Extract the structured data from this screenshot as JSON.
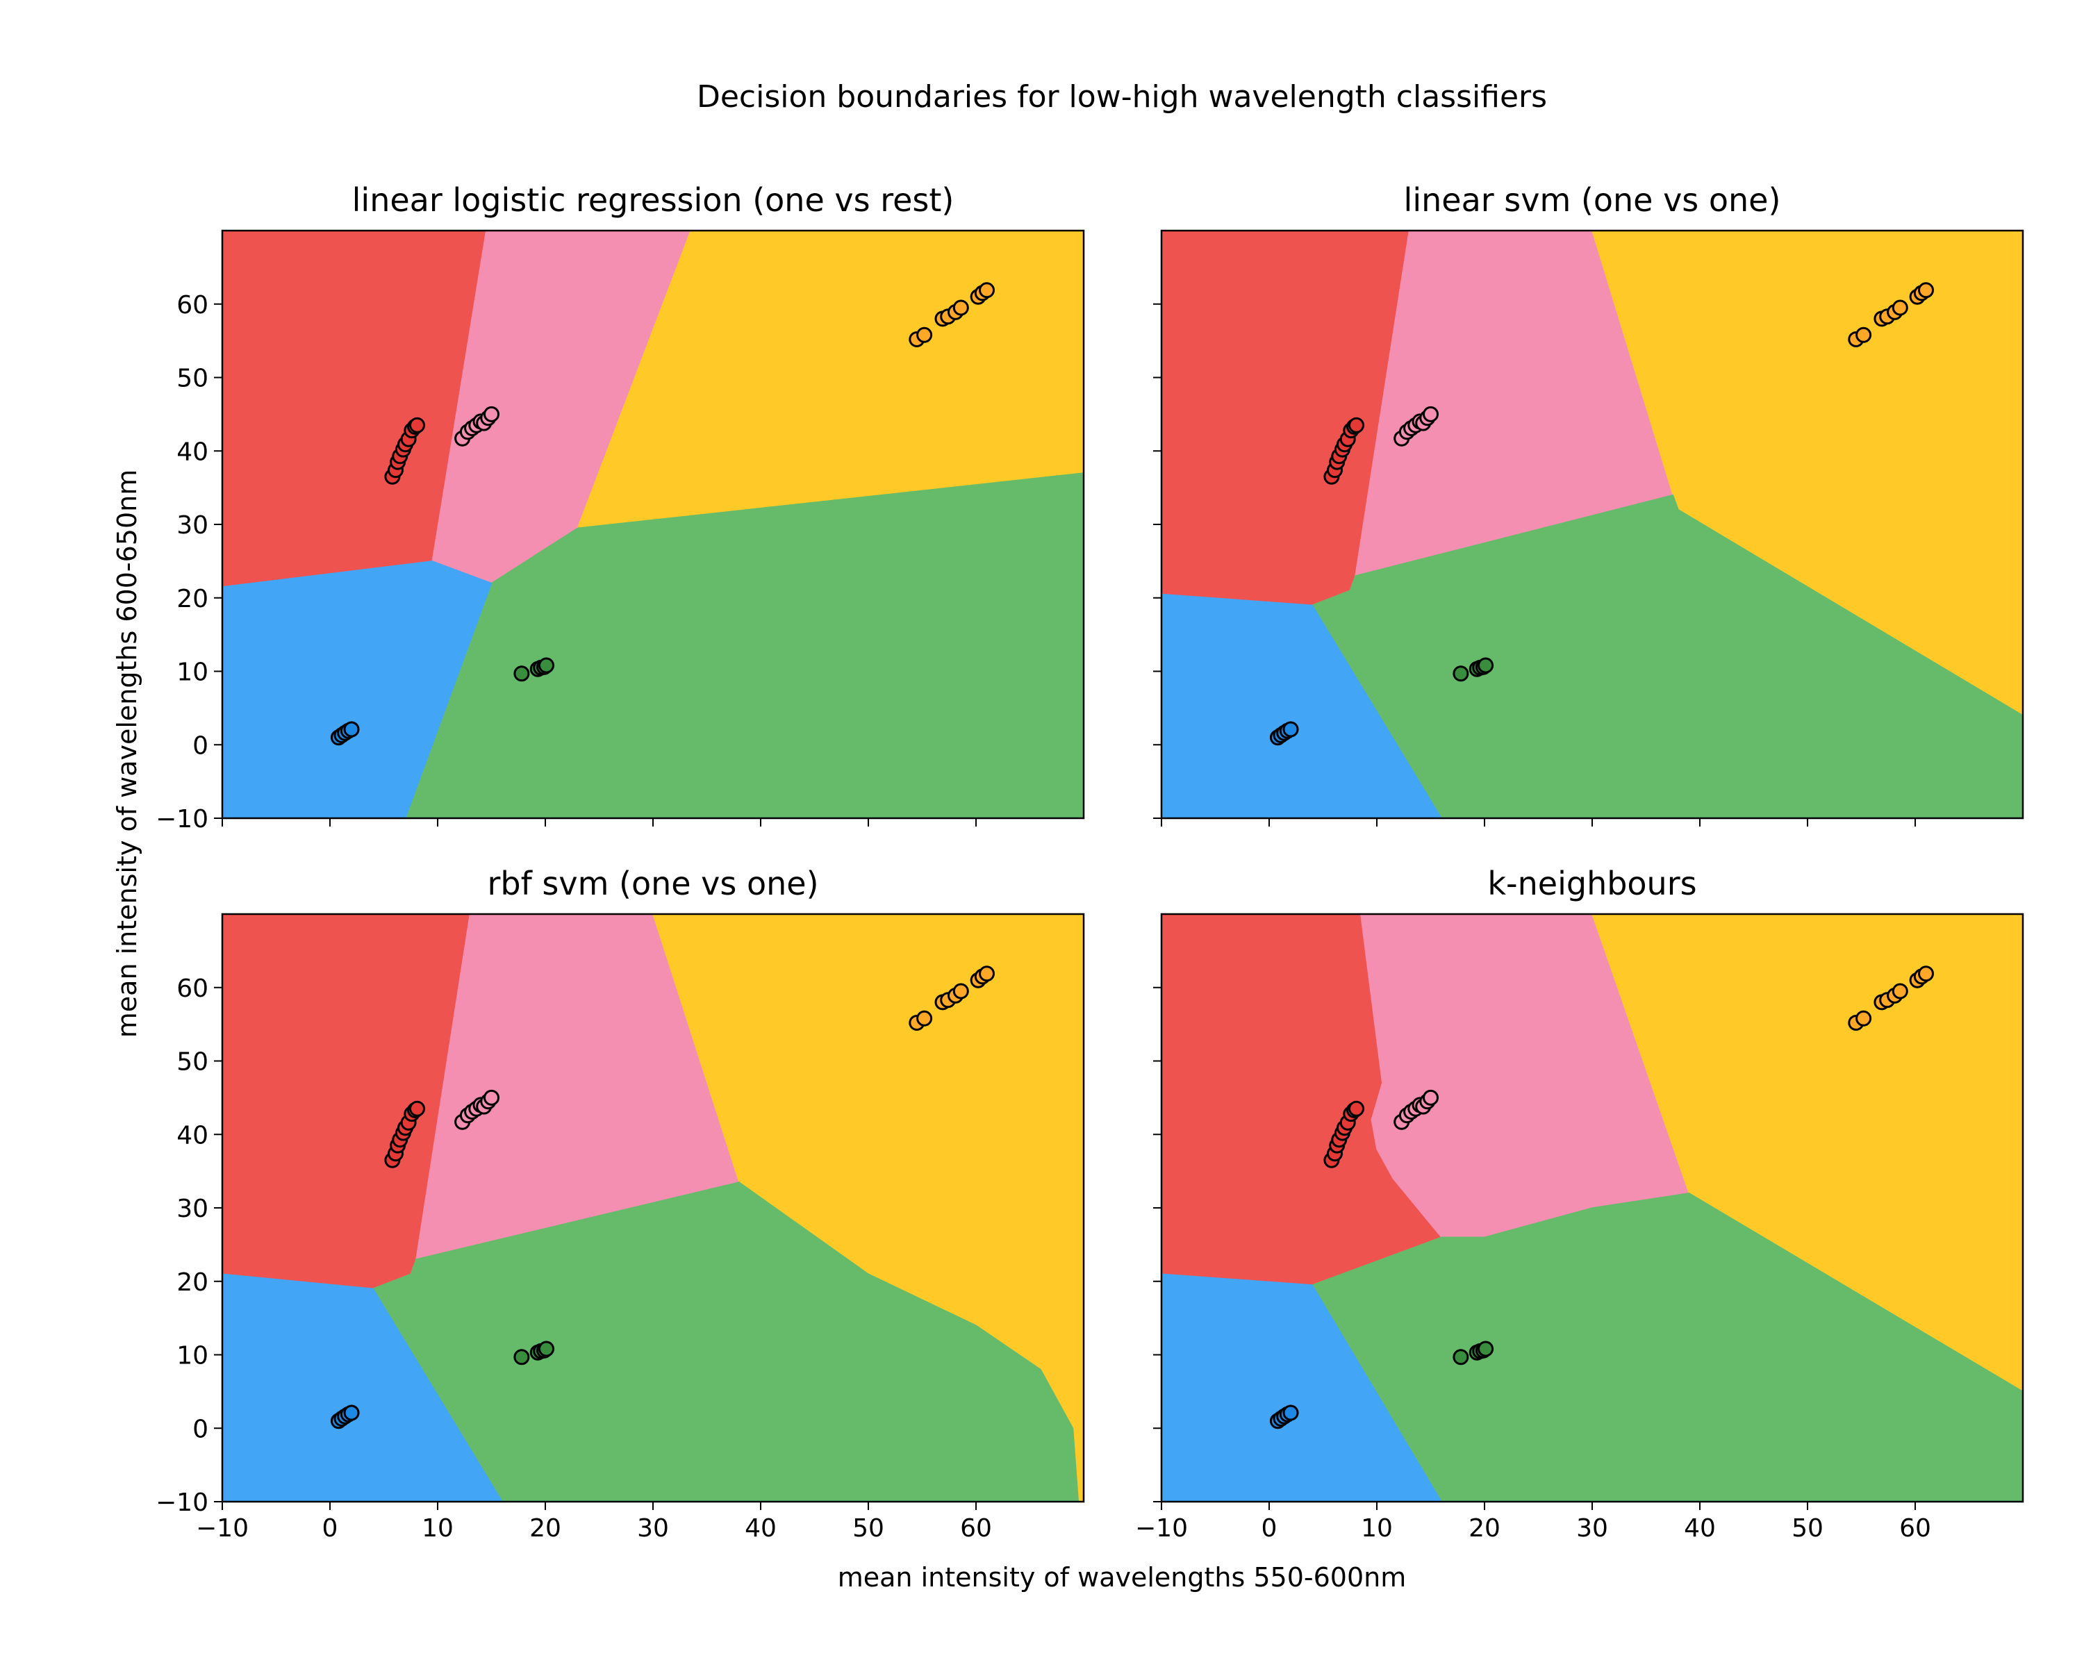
{
  "figure": {
    "suptitle": "Decision boundaries for low-high wavelength classifiers",
    "xlabel": "mean intensity of wavelengths 550-600nm",
    "ylabel": "mean intensity of wavelengths 600-650nm"
  },
  "colors": {
    "red": "#ef5350",
    "pink": "#f48fb1",
    "yellow": "#ffca28",
    "green": "#66bb6a",
    "blue": "#42a5f5",
    "pt_red": "#e53935",
    "pt_pink": "#f48fb1",
    "pt_yellow": "#ffa726",
    "pt_green": "#388e3c",
    "pt_blue": "#1e88e5"
  },
  "chart_data": [
    {
      "type": "scatter",
      "title": "linear logistic regression (one vs rest)",
      "xlim": [
        -10,
        70
      ],
      "ylim": [
        -10,
        70
      ],
      "xticks": [
        -10,
        0,
        10,
        20,
        30,
        40,
        50,
        60
      ],
      "yticks": [
        -10,
        0,
        10,
        20,
        30,
        40,
        50,
        60
      ],
      "show_xticklabels": false,
      "show_yticklabels": true,
      "regions": [
        {
          "class": "red",
          "polygon": [
            [
              -10,
              70
            ],
            [
              14.5,
              70
            ],
            [
              9.5,
              25
            ],
            [
              -10,
              21.5
            ]
          ]
        },
        {
          "class": "pink",
          "polygon": [
            [
              14.5,
              70
            ],
            [
              33.5,
              70
            ],
            [
              23,
              29.5
            ],
            [
              15,
              22
            ],
            [
              9.5,
              25
            ]
          ]
        },
        {
          "class": "yellow",
          "polygon": [
            [
              33.5,
              70
            ],
            [
              70,
              70
            ],
            [
              70,
              37
            ],
            [
              23,
              29.5
            ]
          ]
        },
        {
          "class": "green",
          "polygon": [
            [
              23,
              29.5
            ],
            [
              70,
              37
            ],
            [
              70,
              -10
            ],
            [
              7,
              -10
            ],
            [
              15,
              22
            ]
          ]
        },
        {
          "class": "blue",
          "polygon": [
            [
              -10,
              21.5
            ],
            [
              9.5,
              25
            ],
            [
              15,
              22
            ],
            [
              7,
              -10
            ],
            [
              -10,
              -10
            ]
          ]
        }
      ]
    },
    {
      "type": "scatter",
      "title": "linear svm (one vs one)",
      "xlim": [
        -10,
        70
      ],
      "ylim": [
        -10,
        70
      ],
      "xticks": [
        -10,
        0,
        10,
        20,
        30,
        40,
        50,
        60
      ],
      "yticks": [
        -10,
        0,
        10,
        20,
        30,
        40,
        50,
        60
      ],
      "show_xticklabels": false,
      "show_yticklabels": false,
      "regions": [
        {
          "class": "red",
          "polygon": [
            [
              -10,
              70
            ],
            [
              13,
              70
            ],
            [
              8,
              23
            ],
            [
              7.5,
              21
            ],
            [
              4,
              19
            ],
            [
              -10,
              20.5
            ]
          ]
        },
        {
          "class": "pink",
          "polygon": [
            [
              13,
              70
            ],
            [
              30,
              70
            ],
            [
              37.5,
              34
            ],
            [
              8,
              23
            ]
          ]
        },
        {
          "class": "yellow",
          "polygon": [
            [
              30,
              70
            ],
            [
              70,
              70
            ],
            [
              70,
              4
            ],
            [
              38,
              32
            ],
            [
              37.5,
              34
            ]
          ]
        },
        {
          "class": "green",
          "polygon": [
            [
              7.5,
              21
            ],
            [
              8,
              23
            ],
            [
              37.5,
              34
            ],
            [
              38,
              32
            ],
            [
              70,
              4
            ],
            [
              70,
              -10
            ],
            [
              16,
              -10
            ],
            [
              4,
              19
            ]
          ]
        },
        {
          "class": "blue",
          "polygon": [
            [
              -10,
              20.5
            ],
            [
              4,
              19
            ],
            [
              16,
              -10
            ],
            [
              -10,
              -10
            ]
          ]
        }
      ]
    },
    {
      "type": "scatter",
      "title": "rbf svm (one vs one)",
      "xlim": [
        -10,
        70
      ],
      "ylim": [
        -10,
        70
      ],
      "xticks": [
        -10,
        0,
        10,
        20,
        30,
        40,
        50,
        60
      ],
      "yticks": [
        -10,
        0,
        10,
        20,
        30,
        40,
        50,
        60
      ],
      "show_xticklabels": true,
      "show_yticklabels": true,
      "regions": [
        {
          "class": "red",
          "polygon": [
            [
              -10,
              70
            ],
            [
              13,
              70
            ],
            [
              8,
              23
            ],
            [
              7.5,
              21
            ],
            [
              4,
              19
            ],
            [
              -10,
              21
            ]
          ]
        },
        {
          "class": "pink",
          "polygon": [
            [
              13,
              70
            ],
            [
              30,
              70
            ],
            [
              38,
              33.5
            ],
            [
              8,
              23
            ]
          ]
        },
        {
          "class": "yellow",
          "polygon": [
            [
              30,
              70
            ],
            [
              70,
              70
            ],
            [
              70,
              -10
            ],
            [
              69.5,
              -10
            ],
            [
              69,
              0
            ],
            [
              66,
              8
            ],
            [
              60,
              14
            ],
            [
              50,
              21
            ],
            [
              38,
              33.5
            ]
          ]
        },
        {
          "class": "green",
          "polygon": [
            [
              7.5,
              21
            ],
            [
              8,
              23
            ],
            [
              38,
              33.5
            ],
            [
              50,
              21
            ],
            [
              60,
              14
            ],
            [
              66,
              8
            ],
            [
              69,
              0
            ],
            [
              69.5,
              -10
            ],
            [
              16,
              -10
            ],
            [
              4,
              19
            ]
          ]
        },
        {
          "class": "blue",
          "polygon": [
            [
              -10,
              21
            ],
            [
              4,
              19
            ],
            [
              16,
              -10
            ],
            [
              -10,
              -10
            ]
          ]
        }
      ]
    },
    {
      "type": "scatter",
      "title": "k-neighbours",
      "xlim": [
        -10,
        70
      ],
      "ylim": [
        -10,
        70
      ],
      "xticks": [
        -10,
        0,
        10,
        20,
        30,
        40,
        50,
        60
      ],
      "yticks": [
        -10,
        0,
        10,
        20,
        30,
        40,
        50,
        60
      ],
      "show_xticklabels": true,
      "show_yticklabels": false,
      "regions": [
        {
          "class": "red",
          "polygon": [
            [
              -10,
              70
            ],
            [
              8.5,
              70
            ],
            [
              10.5,
              47
            ],
            [
              9.5,
              42
            ],
            [
              10,
              38
            ],
            [
              11.5,
              34
            ],
            [
              16,
              26
            ],
            [
              4,
              19.5
            ],
            [
              -10,
              21
            ]
          ]
        },
        {
          "class": "pink",
          "polygon": [
            [
              8.5,
              70
            ],
            [
              30,
              70
            ],
            [
              39,
              32
            ],
            [
              30,
              30
            ],
            [
              20,
              26
            ],
            [
              16,
              26
            ],
            [
              11.5,
              34
            ],
            [
              10,
              38
            ],
            [
              9.5,
              42
            ],
            [
              10.5,
              47
            ]
          ]
        },
        {
          "class": "yellow",
          "polygon": [
            [
              30,
              70
            ],
            [
              70,
              70
            ],
            [
              70,
              5
            ],
            [
              39,
              32
            ]
          ]
        },
        {
          "class": "green",
          "polygon": [
            [
              4,
              19.5
            ],
            [
              16,
              26
            ],
            [
              20,
              26
            ],
            [
              30,
              30
            ],
            [
              39,
              32
            ],
            [
              70,
              5
            ],
            [
              70,
              -10
            ],
            [
              16,
              -10
            ]
          ]
        },
        {
          "class": "blue",
          "polygon": [
            [
              -10,
              21
            ],
            [
              4,
              19.5
            ],
            [
              16,
              -10
            ],
            [
              -10,
              -10
            ]
          ]
        }
      ]
    }
  ],
  "points": {
    "red": [
      [
        5.8,
        36.5
      ],
      [
        6.1,
        37.4
      ],
      [
        6.3,
        38.5
      ],
      [
        6.5,
        39.3
      ],
      [
        6.8,
        40.2
      ],
      [
        7.0,
        40.9
      ],
      [
        7.3,
        41.6
      ],
      [
        7.6,
        42.8
      ],
      [
        7.9,
        43.3
      ],
      [
        8.1,
        43.5
      ]
    ],
    "pink": [
      [
        12.3,
        41.7
      ],
      [
        12.8,
        42.6
      ],
      [
        13.2,
        43.1
      ],
      [
        13.6,
        43.5
      ],
      [
        14.0,
        44.0
      ],
      [
        14.3,
        43.8
      ],
      [
        14.7,
        44.5
      ],
      [
        15.0,
        45.0
      ]
    ],
    "yellow": [
      [
        54.5,
        55.2
      ],
      [
        55.2,
        55.8
      ],
      [
        56.9,
        58.0
      ],
      [
        57.4,
        58.3
      ],
      [
        58.1,
        58.9
      ],
      [
        58.6,
        59.5
      ],
      [
        60.2,
        61.0
      ],
      [
        60.6,
        61.5
      ],
      [
        61.0,
        61.9
      ]
    ],
    "green": [
      [
        17.8,
        9.7
      ],
      [
        19.3,
        10.3
      ],
      [
        19.6,
        10.5
      ],
      [
        19.9,
        10.6
      ],
      [
        20.1,
        10.8
      ]
    ],
    "blue": [
      [
        0.8,
        1.0
      ],
      [
        1.1,
        1.3
      ],
      [
        1.4,
        1.6
      ],
      [
        1.7,
        1.9
      ],
      [
        2.0,
        2.1
      ]
    ]
  }
}
